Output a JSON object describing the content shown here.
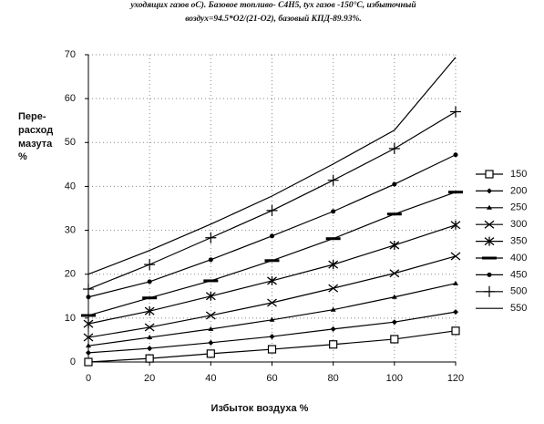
{
  "chart_data": {
    "type": "line",
    "title_lines": [
      "уходящих газов оС). Базовое топливо- С4Н5, tух газов -150°С, избыточный",
      "воздух=94.5*О2/(21-О2), базовый КПД-89.93%."
    ],
    "y_label_lines": [
      "Пере-",
      "расход",
      "мазута",
      "%"
    ],
    "x_label": "Избыток воздуха %",
    "x": [
      0,
      20,
      40,
      60,
      80,
      100,
      120
    ],
    "xlim": [
      0,
      120
    ],
    "xticks": [
      0,
      20,
      40,
      60,
      80,
      100,
      120
    ],
    "ylim": [
      0,
      70
    ],
    "yticks": [
      0,
      10,
      20,
      30,
      40,
      50,
      60,
      70
    ],
    "grid": true,
    "series": [
      {
        "name": "150",
        "color": "#000000",
        "marker": "square",
        "values": [
          0,
          0.8,
          1.9,
          2.9,
          4,
          5.2,
          7.1
        ]
      },
      {
        "name": "200",
        "color": "#000000",
        "marker": "diamond",
        "values": [
          2.1,
          3.1,
          4.4,
          5.8,
          7.5,
          9.1,
          11.4
        ]
      },
      {
        "name": "250",
        "color": "#000000",
        "marker": "triangle",
        "values": [
          3.7,
          5.6,
          7.5,
          9.6,
          11.9,
          14.8,
          17.9
        ]
      },
      {
        "name": "300",
        "color": "#000000",
        "marker": "x",
        "values": [
          5.6,
          7.9,
          10.6,
          13.5,
          16.8,
          20.2,
          24.1
        ]
      },
      {
        "name": "350",
        "color": "#000000",
        "marker": "star",
        "values": [
          8.7,
          11.6,
          15,
          18.5,
          22.2,
          26.6,
          31.2
        ]
      },
      {
        "name": "400",
        "color": "#000000",
        "marker": "dash",
        "values": [
          10.6,
          14.6,
          18.5,
          23.1,
          28.1,
          33.7,
          38.7
        ]
      },
      {
        "name": "450",
        "color": "#000000",
        "marker": "dot",
        "values": [
          14.8,
          18.3,
          23.3,
          28.7,
          34.3,
          40.5,
          47.2
        ]
      },
      {
        "name": "500",
        "color": "#000000",
        "marker": "plus",
        "values": [
          16.6,
          22.2,
          28.3,
          34.5,
          41.4,
          48.6,
          57
        ]
      },
      {
        "name": "550",
        "color": "#000000",
        "marker": "none",
        "values": [
          20,
          25.4,
          31.4,
          37.8,
          45.1,
          52.8,
          69.4
        ]
      }
    ]
  }
}
